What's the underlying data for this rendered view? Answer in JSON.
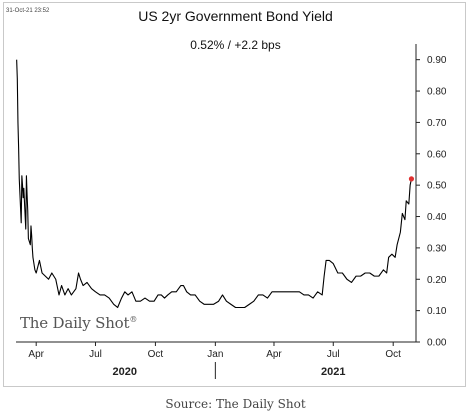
{
  "timestamp": "31-Oct-21 23:52",
  "source": "Source: The Daily Shot",
  "logo_text": "The Daily Shot",
  "logo_mark": "®",
  "colors": {
    "line": "#000000",
    "last_point": "#e03030",
    "axis": "#222222",
    "frame": "#c9c9c9"
  },
  "chart_data": {
    "type": "line",
    "title": "US 2yr Government Bond Yield",
    "subtitle": "0.52%  /  +2.2 bps",
    "xlabel": "",
    "ylabel": "",
    "ylim": [
      0,
      0.95
    ],
    "xlim": [
      "2020-03-01",
      "2021-11-05"
    ],
    "yticks": [
      0.0,
      0.1,
      0.2,
      0.3,
      0.4,
      0.5,
      0.6,
      0.7,
      0.8,
      0.9
    ],
    "ytick_labels": [
      "0.00",
      "0.10",
      "0.20",
      "0.30",
      "0.40",
      "0.50",
      "0.60",
      "0.70",
      "0.80",
      "0.90"
    ],
    "xticks": [
      {
        "date": "2020-04-01",
        "label": "Apr"
      },
      {
        "date": "2020-07-01",
        "label": "Jul"
      },
      {
        "date": "2020-10-01",
        "label": "Oct"
      },
      {
        "date": "2021-01-01",
        "label": "Jan"
      },
      {
        "date": "2021-04-01",
        "label": "Apr"
      },
      {
        "date": "2021-07-01",
        "label": "Jul"
      },
      {
        "date": "2021-10-01",
        "label": "Oct"
      }
    ],
    "years": [
      {
        "label": "2020",
        "center": "2020-08-15"
      },
      {
        "label": "2021",
        "center": "2021-07-01"
      }
    ],
    "year_divider": "2021-01-01",
    "grid": false,
    "legend": "none",
    "series": [
      {
        "name": "",
        "points": [
          [
            "2020-03-02",
            0.9
          ],
          [
            "2020-03-03",
            0.84
          ],
          [
            "2020-03-04",
            0.7
          ],
          [
            "2020-03-05",
            0.62
          ],
          [
            "2020-03-06",
            0.52
          ],
          [
            "2020-03-09",
            0.38
          ],
          [
            "2020-03-10",
            0.53
          ],
          [
            "2020-03-11",
            0.5
          ],
          [
            "2020-03-12",
            0.46
          ],
          [
            "2020-03-13",
            0.49
          ],
          [
            "2020-03-16",
            0.36
          ],
          [
            "2020-03-17",
            0.53
          ],
          [
            "2020-03-18",
            0.47
          ],
          [
            "2020-03-19",
            0.42
          ],
          [
            "2020-03-20",
            0.33
          ],
          [
            "2020-03-23",
            0.31
          ],
          [
            "2020-03-24",
            0.37
          ],
          [
            "2020-03-25",
            0.34
          ],
          [
            "2020-03-26",
            0.3
          ],
          [
            "2020-03-27",
            0.27
          ],
          [
            "2020-03-30",
            0.23
          ],
          [
            "2020-04-01",
            0.22
          ],
          [
            "2020-04-06",
            0.26
          ],
          [
            "2020-04-10",
            0.22
          ],
          [
            "2020-04-15",
            0.21
          ],
          [
            "2020-04-20",
            0.2
          ],
          [
            "2020-04-25",
            0.22
          ],
          [
            "2020-05-01",
            0.2
          ],
          [
            "2020-05-06",
            0.15
          ],
          [
            "2020-05-10",
            0.18
          ],
          [
            "2020-05-15",
            0.15
          ],
          [
            "2020-05-20",
            0.17
          ],
          [
            "2020-05-25",
            0.15
          ],
          [
            "2020-06-01",
            0.17
          ],
          [
            "2020-06-05",
            0.22
          ],
          [
            "2020-06-08",
            0.2
          ],
          [
            "2020-06-12",
            0.18
          ],
          [
            "2020-06-18",
            0.19
          ],
          [
            "2020-06-25",
            0.17
          ],
          [
            "2020-07-01",
            0.16
          ],
          [
            "2020-07-08",
            0.15
          ],
          [
            "2020-07-15",
            0.15
          ],
          [
            "2020-07-22",
            0.14
          ],
          [
            "2020-07-29",
            0.12
          ],
          [
            "2020-08-04",
            0.11
          ],
          [
            "2020-08-10",
            0.14
          ],
          [
            "2020-08-15",
            0.16
          ],
          [
            "2020-08-20",
            0.15
          ],
          [
            "2020-08-26",
            0.16
          ],
          [
            "2020-09-01",
            0.13
          ],
          [
            "2020-09-08",
            0.13
          ],
          [
            "2020-09-15",
            0.14
          ],
          [
            "2020-09-22",
            0.13
          ],
          [
            "2020-09-29",
            0.13
          ],
          [
            "2020-10-05",
            0.15
          ],
          [
            "2020-10-10",
            0.15
          ],
          [
            "2020-10-15",
            0.14
          ],
          [
            "2020-10-20",
            0.15
          ],
          [
            "2020-10-26",
            0.16
          ],
          [
            "2020-11-02",
            0.16
          ],
          [
            "2020-11-09",
            0.18
          ],
          [
            "2020-11-13",
            0.18
          ],
          [
            "2020-11-18",
            0.16
          ],
          [
            "2020-11-24",
            0.15
          ],
          [
            "2020-12-01",
            0.15
          ],
          [
            "2020-12-08",
            0.13
          ],
          [
            "2020-12-15",
            0.12
          ],
          [
            "2020-12-22",
            0.12
          ],
          [
            "2020-12-29",
            0.12
          ],
          [
            "2021-01-06",
            0.13
          ],
          [
            "2021-01-12",
            0.15
          ],
          [
            "2021-01-18",
            0.13
          ],
          [
            "2021-01-25",
            0.12
          ],
          [
            "2021-02-01",
            0.11
          ],
          [
            "2021-02-08",
            0.11
          ],
          [
            "2021-02-15",
            0.11
          ],
          [
            "2021-02-22",
            0.12
          ],
          [
            "2021-03-01",
            0.13
          ],
          [
            "2021-03-08",
            0.15
          ],
          [
            "2021-03-15",
            0.15
          ],
          [
            "2021-03-22",
            0.14
          ],
          [
            "2021-03-29",
            0.16
          ],
          [
            "2021-04-05",
            0.16
          ],
          [
            "2021-04-12",
            0.16
          ],
          [
            "2021-04-19",
            0.16
          ],
          [
            "2021-04-26",
            0.16
          ],
          [
            "2021-05-03",
            0.16
          ],
          [
            "2021-05-10",
            0.16
          ],
          [
            "2021-05-17",
            0.15
          ],
          [
            "2021-05-24",
            0.15
          ],
          [
            "2021-05-31",
            0.14
          ],
          [
            "2021-06-07",
            0.16
          ],
          [
            "2021-06-14",
            0.15
          ],
          [
            "2021-06-17",
            0.21
          ],
          [
            "2021-06-20",
            0.26
          ],
          [
            "2021-06-25",
            0.26
          ],
          [
            "2021-07-01",
            0.25
          ],
          [
            "2021-07-08",
            0.22
          ],
          [
            "2021-07-15",
            0.22
          ],
          [
            "2021-07-22",
            0.2
          ],
          [
            "2021-07-29",
            0.19
          ],
          [
            "2021-08-05",
            0.21
          ],
          [
            "2021-08-12",
            0.21
          ],
          [
            "2021-08-19",
            0.22
          ],
          [
            "2021-08-26",
            0.22
          ],
          [
            "2021-09-02",
            0.21
          ],
          [
            "2021-09-09",
            0.21
          ],
          [
            "2021-09-16",
            0.23
          ],
          [
            "2021-09-21",
            0.22
          ],
          [
            "2021-09-24",
            0.27
          ],
          [
            "2021-09-29",
            0.28
          ],
          [
            "2021-10-04",
            0.27
          ],
          [
            "2021-10-07",
            0.31
          ],
          [
            "2021-10-12",
            0.35
          ],
          [
            "2021-10-15",
            0.41
          ],
          [
            "2021-10-19",
            0.39
          ],
          [
            "2021-10-21",
            0.45
          ],
          [
            "2021-10-25",
            0.44
          ],
          [
            "2021-10-27",
            0.5
          ],
          [
            "2021-10-29",
            0.52
          ]
        ]
      }
    ]
  }
}
